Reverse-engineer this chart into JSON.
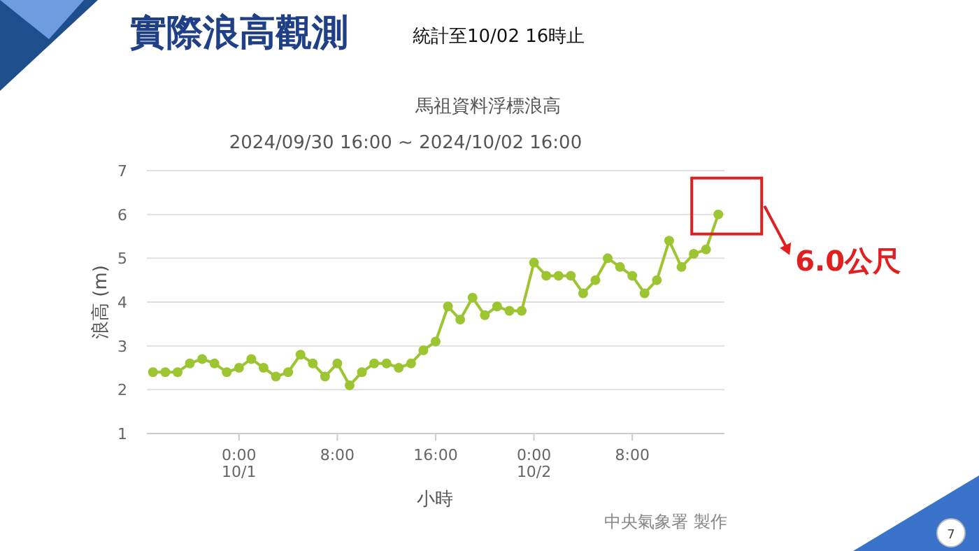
{
  "chart_data": {
    "type": "line",
    "title": "馬祖資料浮標浪高",
    "subtitle": "2024/09/30 16:00 ~ 2024/10/02 16:00",
    "xlabel": "小時",
    "ylabel": "浪高 (m)",
    "annotations": [
      "實際浪高觀測",
      "統計至10/02  16時止",
      {
        "text": "6.0公尺",
        "x": "2024-10-02T15:00",
        "y": 6.0
      },
      "中央氣象署 製作",
      "7"
    ],
    "x": [
      "2024-09-30T17:00",
      "2024-09-30T18:00",
      "2024-09-30T19:00",
      "2024-09-30T20:00",
      "2024-09-30T21:00",
      "2024-09-30T22:00",
      "2024-09-30T23:00",
      "2024-10-01T00:00",
      "2024-10-01T01:00",
      "2024-10-01T02:00",
      "2024-10-01T03:00",
      "2024-10-01T04:00",
      "2024-10-01T05:00",
      "2024-10-01T06:00",
      "2024-10-01T07:00",
      "2024-10-01T08:00",
      "2024-10-01T09:00",
      "2024-10-01T10:00",
      "2024-10-01T11:00",
      "2024-10-01T12:00",
      "2024-10-01T13:00",
      "2024-10-01T14:00",
      "2024-10-01T15:00",
      "2024-10-01T16:00",
      "2024-10-01T17:00",
      "2024-10-01T18:00",
      "2024-10-01T19:00",
      "2024-10-01T20:00",
      "2024-10-01T21:00",
      "2024-10-01T22:00",
      "2024-10-01T23:00",
      "2024-10-02T00:00",
      "2024-10-02T01:00",
      "2024-10-02T02:00",
      "2024-10-02T03:00",
      "2024-10-02T04:00",
      "2024-10-02T05:00",
      "2024-10-02T06:00",
      "2024-10-02T07:00",
      "2024-10-02T08:00",
      "2024-10-02T09:00",
      "2024-10-02T10:00",
      "2024-10-02T11:00",
      "2024-10-02T12:00",
      "2024-10-02T13:00",
      "2024-10-02T14:00",
      "2024-10-02T15:00"
    ],
    "series": [
      {
        "color": "#9dc431",
        "values": [
          2.4,
          2.4,
          2.4,
          2.6,
          2.7,
          2.6,
          2.4,
          2.5,
          2.7,
          2.5,
          2.3,
          2.4,
          2.8,
          2.6,
          2.3,
          2.6,
          2.1,
          2.4,
          2.6,
          2.6,
          2.5,
          2.6,
          2.9,
          3.1,
          3.9,
          3.6,
          4.1,
          3.7,
          3.9,
          3.8,
          3.8,
          4.9,
          4.6,
          4.6,
          4.6,
          4.2,
          4.5,
          5.0,
          4.8,
          4.6,
          4.2,
          4.5,
          5.4,
          4.8,
          5.1,
          5.2,
          6.0
        ]
      }
    ],
    "xlim": [
      "2024-09-30T16:30",
      "2024-10-02T15:30"
    ],
    "xticks": [
      {
        "value": "2024-10-01T00:00",
        "label": "0:00\n10/1"
      },
      {
        "value": "2024-10-01T08:00",
        "label": "8:00"
      },
      {
        "value": "2024-10-01T16:00",
        "label": "16:00"
      },
      {
        "value": "2024-10-02T00:00",
        "label": "0:00\n10/2"
      },
      {
        "value": "2024-10-02T08:00",
        "label": "8:00"
      }
    ],
    "ylim": [
      1,
      7
    ],
    "yticks": [
      1,
      2,
      3,
      4,
      5,
      6,
      7
    ],
    "grid": "y",
    "marker": "circle",
    "line_style": "solid"
  }
}
